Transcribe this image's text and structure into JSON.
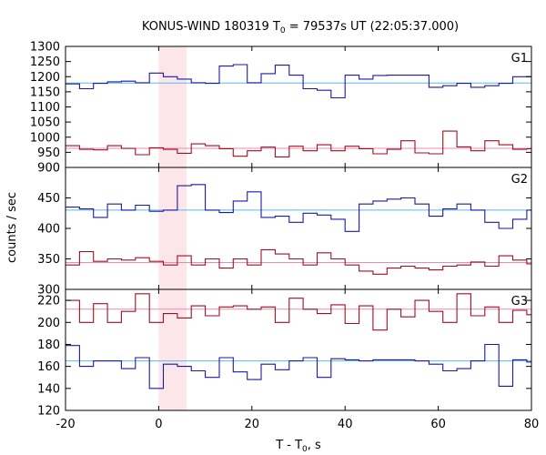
{
  "chart_data": {
    "type": "line",
    "title": "KONUS-WIND 180319 T",
    "title_sub": "0",
    "title_rest": " = 79537s UT (22:05:37.000)",
    "xlabel": "T - T",
    "xlabel_sub": "0",
    "xlabel_rest": ", s",
    "ylabel": "counts / sec",
    "xlim": [
      -20,
      80
    ],
    "x_ticks": [
      "-20",
      "0",
      "20",
      "40",
      "60",
      "80"
    ],
    "highlight_interval": [
      0,
      6
    ],
    "colors": {
      "blue": "#1a1aa6",
      "red": "#a01020",
      "blue_fit": "#5ab8f0",
      "red_fit": "#f08ab0",
      "highlight": "#fde6ea"
    },
    "bin_edges": [
      -20,
      -17,
      -14,
      -11,
      -8,
      -5,
      -2,
      1,
      4,
      7,
      10,
      13,
      16,
      19,
      22,
      25,
      28,
      31,
      34,
      37,
      40,
      43,
      46,
      49,
      52,
      55,
      58,
      61,
      64,
      67,
      70,
      73,
      76,
      79,
      80
    ],
    "panels": [
      {
        "label": "G1",
        "ylim": [
          900,
          1300
        ],
        "y_ticks": [
          900,
          950,
          1000,
          1050,
          1100,
          1150,
          1200,
          1250,
          1300
        ],
        "series": [
          {
            "color": "blue",
            "fit": 1179,
            "values": [
              1176,
              1160,
              1178,
              1183,
              1185,
              1180,
              1212,
              1200,
              1192,
              1180,
              1178,
              1235,
              1240,
              1180,
              1210,
              1238,
              1205,
              1160,
              1155,
              1130,
              1205,
              1192,
              1204,
              1205,
              1205,
              1205,
              1165,
              1170,
              1178,
              1165,
              1170,
              1178,
              1200,
              1200
            ]
          },
          {
            "color": "red",
            "fit": 963,
            "values": [
              972,
              960,
              958,
              972,
              963,
              942,
              965,
              960,
              947,
              978,
              972,
              962,
              937,
              955,
              967,
              935,
              970,
              955,
              975,
              955,
              970,
              962,
              945,
              960,
              988,
              948,
              945,
              1020,
              968,
              955,
              988,
              975,
              960,
              962
            ]
          }
        ]
      },
      {
        "label": "G2",
        "ylim": [
          300,
          500
        ],
        "y_ticks": [
          300,
          350,
          400,
          450
        ],
        "series": [
          {
            "color": "blue",
            "fit": 430,
            "values": [
              435,
              432,
              418,
              440,
              430,
              438,
              428,
              430,
              470,
              472,
              430,
              426,
              445,
              460,
              418,
              420,
              410,
              425,
              422,
              415,
              395,
              440,
              445,
              448,
              450,
              440,
              420,
              432,
              440,
              430,
              410,
              400,
              415,
              430
            ]
          },
          {
            "color": "red",
            "fit": 344,
            "values": [
              340,
              362,
              346,
              350,
              348,
              352,
              346,
              340,
              355,
              340,
              350,
              335,
              350,
              340,
              365,
              358,
              350,
              340,
              360,
              350,
              340,
              330,
              325,
              335,
              338,
              335,
              332,
              338,
              340,
              345,
              338,
              355,
              348,
              342
            ]
          }
        ]
      },
      {
        "label": "G3",
        "ylim": [
          120,
          230
        ],
        "y_ticks": [
          120,
          140,
          160,
          180,
          200,
          220
        ],
        "series": [
          {
            "color": "red",
            "fit": 212,
            "values": [
              220,
              200,
              217,
              200,
              210,
              226,
              200,
              208,
              204,
              215,
              206,
              214,
              215,
              212,
              214,
              200,
              222,
              212,
              208,
              216,
              199,
              215,
              193,
              212,
              205,
              220,
              210,
              200,
              226,
              206,
              214,
              200,
              211,
              207
            ]
          },
          {
            "color": "blue",
            "fit": 165,
            "values": [
              179,
              160,
              165,
              165,
              158,
              168,
              140,
              162,
              160,
              156,
              150,
              168,
              155,
              148,
              162,
              157,
              165,
              168,
              150,
              167,
              166,
              165,
              166,
              166,
              166,
              165,
              162,
              156,
              158,
              165,
              180,
              142,
              166,
              164
            ]
          }
        ]
      }
    ]
  }
}
